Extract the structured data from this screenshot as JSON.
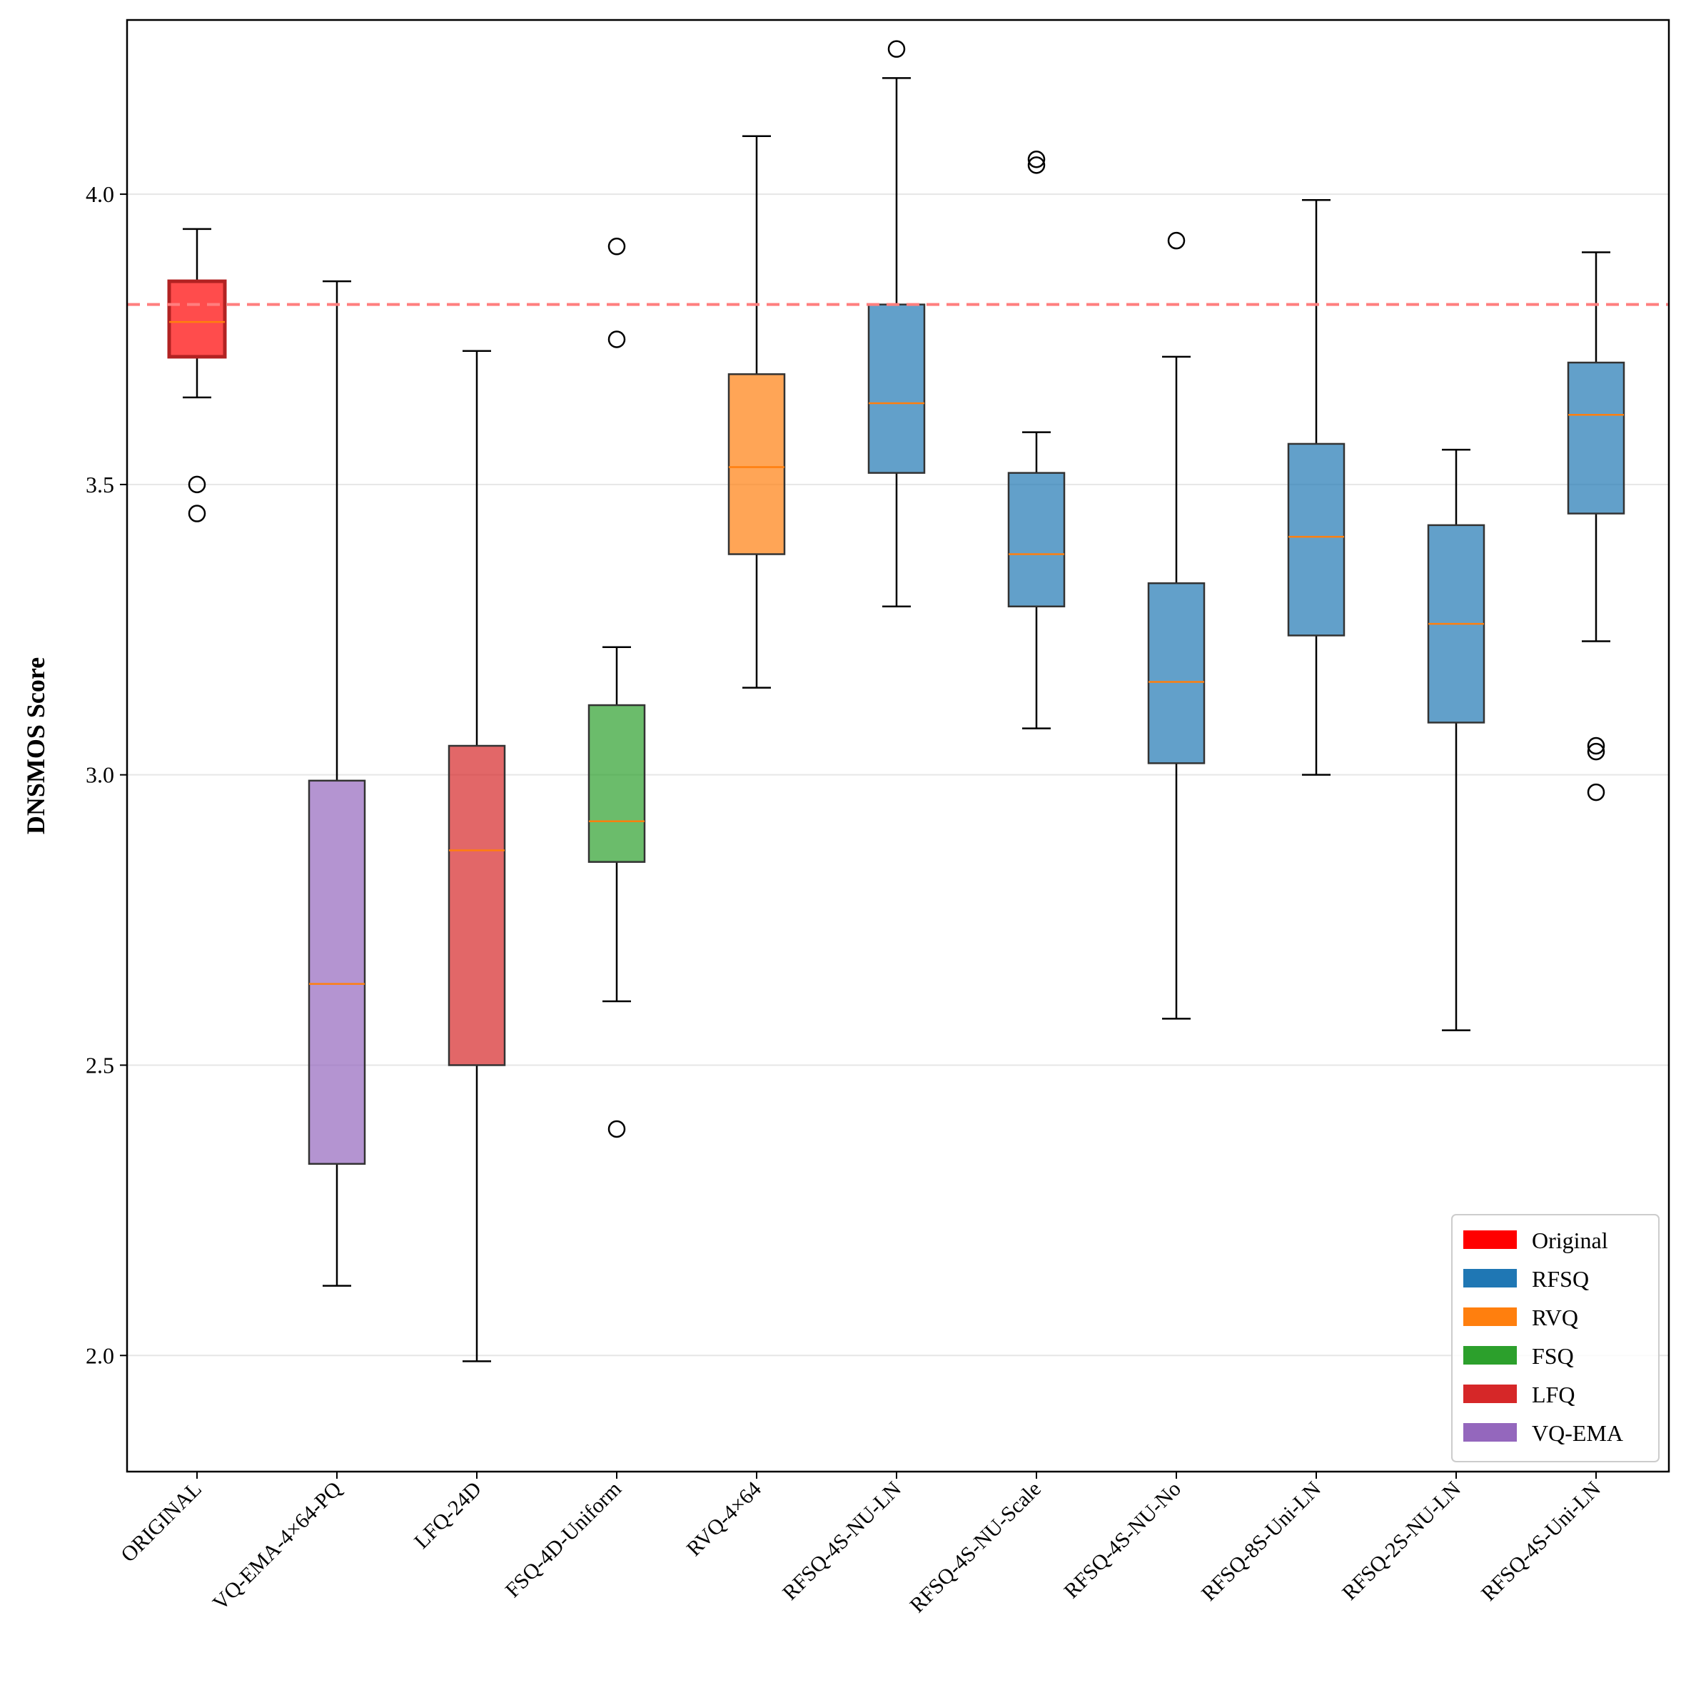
{
  "chart_data": {
    "type": "box",
    "title": "",
    "xlabel": "",
    "ylabel": "DNSMOS Score",
    "ylim": [
      1.8,
      4.3
    ],
    "yticks": [
      2.0,
      2.5,
      3.0,
      3.5,
      4.0
    ],
    "ytick_labels": [
      "2.0",
      "2.5",
      "3.0",
      "3.5",
      "4.0"
    ],
    "grid": "horizontal",
    "reference_line": {
      "value": 3.81,
      "color": "#ff7f7f",
      "style": "dashed"
    },
    "legend_position": "bottom-right",
    "legend": [
      {
        "label": "Original",
        "color": "#ff0000"
      },
      {
        "label": "RFSQ",
        "color": "#1f77b4"
      },
      {
        "label": "RVQ",
        "color": "#ff7f0e"
      },
      {
        "label": "FSQ",
        "color": "#2ca02c"
      },
      {
        "label": "LFQ",
        "color": "#d62728"
      },
      {
        "label": "VQ-EMA",
        "color": "#9467bd"
      }
    ],
    "boxes": [
      {
        "label": "ORIGINAL",
        "color": "#ff0000",
        "whisker_low": 3.65,
        "q1": 3.72,
        "median": 3.78,
        "q3": 3.85,
        "whisker_high": 3.94,
        "outliers": [
          3.5,
          3.45
        ]
      },
      {
        "label": "VQ-EMA-4×64-PQ",
        "color": "#9467bd",
        "whisker_low": 2.12,
        "q1": 2.33,
        "median": 2.64,
        "q3": 2.99,
        "whisker_high": 3.85,
        "outliers": []
      },
      {
        "label": "LFQ-24D",
        "color": "#d62728",
        "whisker_low": 1.99,
        "q1": 2.5,
        "median": 2.87,
        "q3": 3.05,
        "whisker_high": 3.73,
        "outliers": []
      },
      {
        "label": "FSQ-4D-Uniform",
        "color": "#2ca02c",
        "whisker_low": 2.61,
        "q1": 2.85,
        "median": 2.92,
        "q3": 3.12,
        "whisker_high": 3.22,
        "outliers": [
          3.91,
          3.75,
          2.39
        ]
      },
      {
        "label": "RVQ-4×64",
        "color": "#ff7f0e",
        "whisker_low": 3.15,
        "q1": 3.38,
        "median": 3.53,
        "q3": 3.69,
        "whisker_high": 4.1,
        "outliers": []
      },
      {
        "label": "RFSQ-4S-NU-LN",
        "color": "#1f77b4",
        "whisker_low": 3.29,
        "q1": 3.52,
        "median": 3.64,
        "q3": 3.81,
        "whisker_high": 4.2,
        "outliers": [
          4.25
        ]
      },
      {
        "label": "RFSQ-4S-NU-Scale",
        "color": "#1f77b4",
        "whisker_low": 3.08,
        "q1": 3.29,
        "median": 3.38,
        "q3": 3.52,
        "whisker_high": 3.59,
        "outliers": [
          4.06,
          4.05
        ]
      },
      {
        "label": "RFSQ-4S-NU-No",
        "color": "#1f77b4",
        "whisker_low": 2.58,
        "q1": 3.02,
        "median": 3.16,
        "q3": 3.33,
        "whisker_high": 3.72,
        "outliers": [
          3.92
        ]
      },
      {
        "label": "RFSQ-8S-Uni-LN",
        "color": "#1f77b4",
        "whisker_low": 3.0,
        "q1": 3.24,
        "median": 3.41,
        "q3": 3.57,
        "whisker_high": 3.99,
        "outliers": []
      },
      {
        "label": "RFSQ-2S-NU-LN",
        "color": "#1f77b4",
        "whisker_low": 2.56,
        "q1": 3.09,
        "median": 3.26,
        "q3": 3.43,
        "whisker_high": 3.56,
        "outliers": []
      },
      {
        "label": "RFSQ-4S-Uni-LN",
        "color": "#1f77b4",
        "whisker_low": 3.23,
        "q1": 3.45,
        "median": 3.62,
        "q3": 3.71,
        "whisker_high": 3.9,
        "outliers": [
          3.05,
          3.04,
          2.97
        ]
      }
    ]
  },
  "style": {
    "median_color": "#ff7f0e",
    "whisker_color": "#000000",
    "grid_color": "#e6e6e6",
    "box_edge_color": "#333333"
  }
}
